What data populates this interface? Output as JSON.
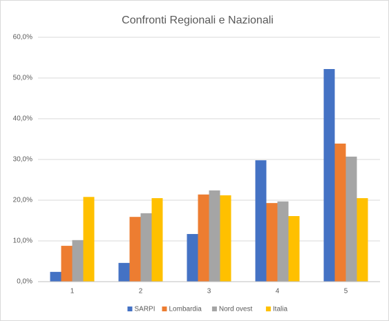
{
  "chart_data": {
    "type": "bar",
    "title": "Confronti  Regionali e Nazionali",
    "categories": [
      "1",
      "2",
      "3",
      "4",
      "5"
    ],
    "series": [
      {
        "name": "SARPI",
        "color": "#4472c4",
        "values": [
          2.4,
          4.6,
          11.7,
          29.8,
          52.2
        ]
      },
      {
        "name": "Lombardia",
        "color": "#ed7d31",
        "values": [
          8.8,
          15.9,
          21.4,
          19.3,
          33.9
        ]
      },
      {
        "name": "Nord ovest",
        "color": "#a5a5a5",
        "values": [
          10.2,
          16.8,
          22.4,
          19.7,
          30.7
        ]
      },
      {
        "name": "Italia",
        "color": "#ffc000",
        "values": [
          20.8,
          20.5,
          21.2,
          16.1,
          20.5
        ]
      }
    ],
    "ylim": [
      0,
      60
    ],
    "yticks": [
      {
        "value": 0,
        "label": "0,0%"
      },
      {
        "value": 10,
        "label": "10,0%"
      },
      {
        "value": 20,
        "label": "20,0%"
      },
      {
        "value": 30,
        "label": "30,0%"
      },
      {
        "value": 40,
        "label": "40,0%"
      },
      {
        "value": 50,
        "label": "50,0%"
      },
      {
        "value": 60,
        "label": "60,0%"
      }
    ],
    "grid": true,
    "legend": "bottom"
  }
}
